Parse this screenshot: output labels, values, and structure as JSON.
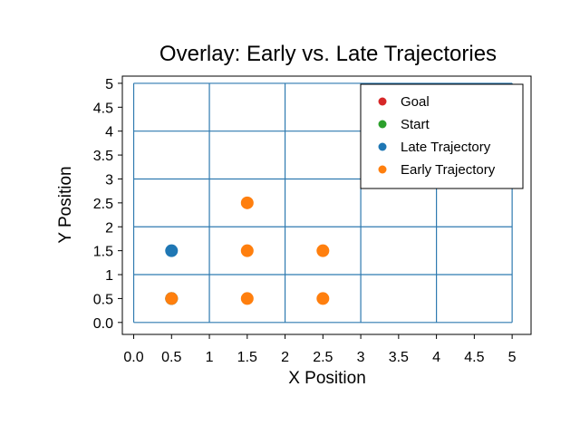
{
  "chart_data": {
    "type": "scatter",
    "title": "Overlay: Early vs. Late Trajectories",
    "xlabel": "X Position",
    "ylabel": "Y Position",
    "xlim": [
      -0.15,
      5.25
    ],
    "ylim": [
      -0.25,
      5.15
    ],
    "xticks": [
      0,
      0.5,
      1,
      1.5,
      2,
      2.5,
      3,
      3.5,
      4,
      4.5,
      5
    ],
    "xtick_labels": [
      "0.0",
      "0.5",
      "1",
      "1.5",
      "2",
      "2.5",
      "3",
      "3.5",
      "4",
      "4.5",
      "5"
    ],
    "yticks": [
      0,
      0.5,
      1,
      1.5,
      2,
      2.5,
      3,
      3.5,
      4,
      4.5,
      5
    ],
    "ytick_labels": [
      "0.0",
      "0.5",
      "1",
      "1.5",
      "2",
      "2.5",
      "3",
      "3.5",
      "4",
      "4.5",
      "5"
    ],
    "grid": {
      "color": "#2f7ab0",
      "lines": [
        0,
        1,
        2,
        3,
        4,
        5
      ]
    },
    "legend_position": "top-right",
    "series": [
      {
        "name": "Goal",
        "color": "#d62728",
        "points": [
          [
            4.5,
            4.5
          ]
        ],
        "alpha": 0.12
      },
      {
        "name": "Start",
        "color": "#2ca02c",
        "points": [
          [
            0.5,
            0.5
          ]
        ],
        "alpha": 1
      },
      {
        "name": "Late Trajectory",
        "color": "#1f77b4",
        "points": [
          [
            0.5,
            0.5
          ],
          [
            0.5,
            1.5
          ]
        ],
        "alpha": 1
      },
      {
        "name": "Early Trajectory",
        "color": "#ff7f0e",
        "points": [
          [
            0.5,
            0.5
          ],
          [
            1.5,
            0.5
          ],
          [
            2.5,
            0.5
          ],
          [
            1.5,
            1.5
          ],
          [
            2.5,
            1.5
          ],
          [
            1.5,
            2.5
          ]
        ],
        "alpha": 1
      }
    ]
  }
}
